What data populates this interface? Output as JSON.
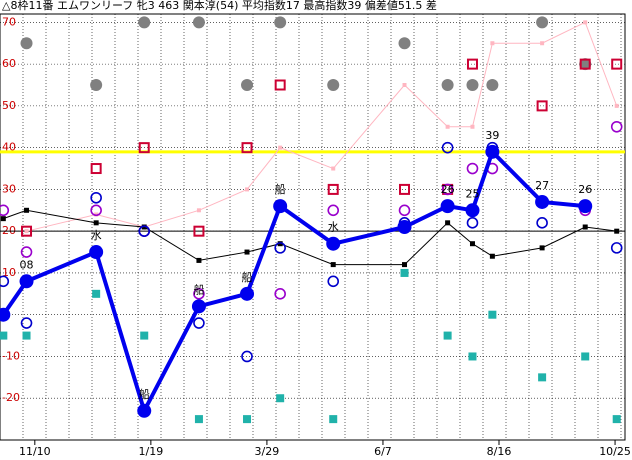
{
  "chart_data": {
    "type": "line",
    "title": "△8枠11番 エムワンリーフ 牝3 463 関本淳(54) 平均指数17 最高指数39 偏差値51.5 差",
    "x": [
      -19,
      -5,
      37,
      66,
      99,
      128,
      148,
      180,
      223,
      249,
      264,
      276,
      306,
      332,
      351
    ],
    "xlim": [
      -21,
      356
    ],
    "xticks": [
      {
        "value": 0,
        "label": "11/10"
      },
      {
        "value": 70,
        "label": "1/19"
      },
      {
        "value": 140,
        "label": "3/29"
      },
      {
        "value": 210,
        "label": "6/7"
      },
      {
        "value": 280,
        "label": "8/16"
      },
      {
        "value": 350,
        "label": "10/25"
      }
    ],
    "ylim": [
      -30,
      72
    ],
    "yticks": [
      70,
      60,
      50,
      40,
      30,
      20,
      10,
      0,
      -10,
      -20
    ],
    "grid": true,
    "hlines": [
      {
        "value": 39,
        "color": "#ffff00"
      },
      {
        "value": 20,
        "color": "#000000"
      }
    ],
    "series": [
      {
        "marker": "thin-line",
        "color": "#ffb6c1",
        "values": [
          null,
          20,
          24,
          21,
          25,
          30,
          40,
          35,
          55,
          45,
          45,
          65,
          65,
          70,
          50
        ]
      },
      {
        "marker": "line-square",
        "color": "#000000",
        "values": [
          23,
          25,
          22,
          21,
          13,
          15,
          17,
          12,
          12,
          22,
          17,
          14,
          16,
          21,
          20
        ]
      },
      {
        "marker": "filled-circle",
        "color": "#808080",
        "values": [
          null,
          65,
          55,
          70,
          70,
          55,
          70,
          55,
          65,
          55,
          55,
          55,
          70,
          60,
          null
        ]
      },
      {
        "marker": "hollow-square",
        "color": "#cc0033",
        "values": [
          null,
          20,
          35,
          40,
          20,
          40,
          55,
          30,
          30,
          30,
          60,
          null,
          50,
          60,
          60
        ]
      },
      {
        "marker": "hollow-circle",
        "color": "#9900cc",
        "values": [
          25,
          15,
          25,
          20,
          5,
          5,
          5,
          25,
          25,
          30,
          35,
          35,
          null,
          25,
          45
        ]
      },
      {
        "marker": "hollow-circle",
        "color": "#0000cc",
        "values": [
          8,
          -2,
          28,
          20,
          -2,
          -10,
          16,
          8,
          22,
          40,
          22,
          40,
          22,
          null,
          16
        ]
      },
      {
        "marker": "filled-square",
        "color": "#20b2aa",
        "values": [
          -5,
          -5,
          5,
          -5,
          -25,
          -25,
          -20,
          -25,
          10,
          -5,
          -10,
          0,
          -15,
          -10,
          -25
        ]
      },
      {
        "marker": "thick-line",
        "color": "#0000ee",
        "values": [
          0,
          8,
          15,
          -23,
          2,
          5,
          26,
          17,
          21,
          26,
          25,
          39,
          27,
          26,
          null
        ],
        "value_labels": [
          null,
          "08",
          null,
          null,
          null,
          null,
          null,
          null,
          null,
          "26",
          "25",
          "39",
          "27",
          "26",
          null
        ],
        "notes": [
          null,
          null,
          "水",
          "船",
          "船",
          "船",
          "船",
          "水",
          null,
          null,
          null,
          null,
          null,
          null,
          null
        ]
      }
    ]
  }
}
